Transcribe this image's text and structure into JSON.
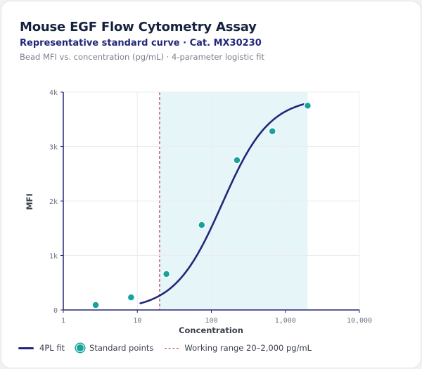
{
  "header": {
    "title": "Mouse EGF Flow Cytometry Assay",
    "subtitle": "Representative standard curve · Cat. MX30230",
    "note": "Bead MFI vs. concentration (pg/mL) · 4-parameter logistic fit"
  },
  "colors": {
    "curve": "#22277a",
    "points": "#16a39c",
    "range_line": "#c0485a",
    "range_band": "#e6f6f8",
    "grid": "#ececf0"
  },
  "chart_data": {
    "type": "scatter",
    "title": "Mouse EGF Flow Cytometry Assay",
    "xlabel": "Concentration",
    "ylabel": "MFI",
    "x_scale": "log",
    "xlim": [
      1,
      10000
    ],
    "ylim": [
      0,
      4000
    ],
    "x_ticks": [
      1,
      10,
      100,
      1000,
      10000
    ],
    "x_tick_labels": [
      "1",
      "10",
      "100",
      "1,000",
      "10,000"
    ],
    "y_ticks": [
      0,
      1000,
      2000,
      3000,
      4000
    ],
    "y_tick_labels": [
      "0",
      "1k",
      "2k",
      "3k",
      "4k"
    ],
    "grid": true,
    "legend_position": "bottom-left",
    "series": [
      {
        "name": "Standard points",
        "type": "scatter",
        "x": [
          2.74,
          8.23,
          24.7,
          74.1,
          222,
          667,
          2000
        ],
        "y": [
          90,
          230,
          660,
          1560,
          2750,
          3280,
          3750
        ]
      },
      {
        "name": "4PL fit",
        "type": "line",
        "x_range": [
          11,
          2000
        ],
        "params": {
          "bottom": 0,
          "top": 3900,
          "ec50": 140,
          "hill": 1.35
        }
      }
    ],
    "annotations": [
      {
        "name": "Working range 20–2,000 pg/mL",
        "type": "band",
        "x_start": 20,
        "x_end": 2000
      }
    ]
  },
  "legend": {
    "fit_label": "4PL fit",
    "points_label": "Standard points",
    "range_label": "Working range 20–2,000 pg/mL"
  }
}
